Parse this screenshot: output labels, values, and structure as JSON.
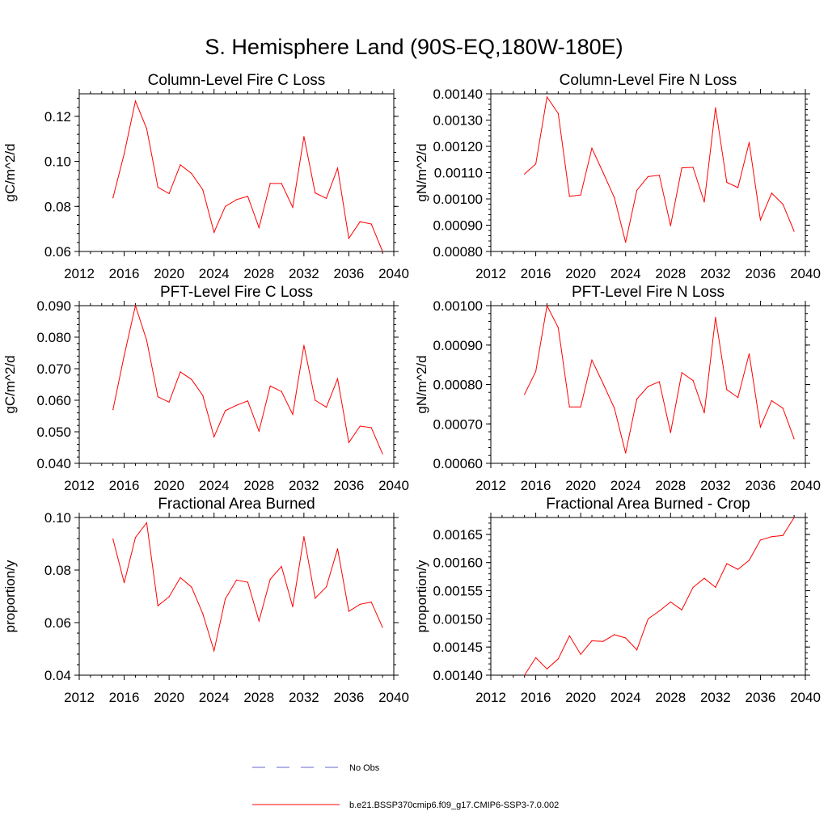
{
  "figure": {
    "title": "S. Hemisphere Land (90S-EQ,180W-180E)"
  },
  "legend": {
    "entries": [
      {
        "label": "No Obs",
        "color": "#6666cc",
        "dash": true
      },
      {
        "label": "b.e21.BSSP370cmip6.f09_g17.CMIP6-SSP3-7.0.002",
        "color": "#ff0000",
        "dash": false
      }
    ]
  },
  "chart_data": [
    {
      "type": "line",
      "title": "Column-Level Fire C Loss",
      "ylabel": "gC/m^2/d",
      "xlim": [
        2012,
        2040
      ],
      "ylim": [
        0.06,
        0.13
      ],
      "xticks": [
        2012,
        2016,
        2020,
        2024,
        2028,
        2032,
        2036,
        2040
      ],
      "xtick_labels": [
        "2012",
        "2016",
        "2020",
        "2024",
        "2028",
        "2032",
        "2036",
        "2040"
      ],
      "yticks": [
        0.06,
        0.08,
        0.1,
        0.12
      ],
      "ytick_labels": [
        "0.06",
        "0.08",
        "0.10",
        "0.12"
      ],
      "x": [
        2015,
        2016,
        2017,
        2018,
        2019,
        2020,
        2021,
        2022,
        2023,
        2024,
        2025,
        2026,
        2027,
        2028,
        2029,
        2030,
        2031,
        2032,
        2033,
        2034,
        2035,
        2036,
        2037,
        2038,
        2039
      ],
      "series": [
        {
          "color": "#ff0000",
          "values": [
            0.0838,
            0.1034,
            0.1268,
            0.1145,
            0.0885,
            0.0857,
            0.0985,
            0.0946,
            0.0874,
            0.0685,
            0.08,
            0.083,
            0.0845,
            0.0706,
            0.0902,
            0.0902,
            0.0796,
            0.111,
            0.086,
            0.0836,
            0.097,
            0.0658,
            0.0732,
            0.0722,
            0.06
          ]
        }
      ]
    },
    {
      "type": "line",
      "title": "Column-Level Fire N Loss",
      "ylabel": "gN/m^2/d",
      "xlim": [
        2012,
        2040
      ],
      "ylim": [
        0.0008,
        0.0014
      ],
      "xticks": [
        2012,
        2016,
        2020,
        2024,
        2028,
        2032,
        2036,
        2040
      ],
      "xtick_labels": [
        "2012",
        "2016",
        "2020",
        "2024",
        "2028",
        "2032",
        "2036",
        "2040"
      ],
      "yticks": [
        0.0008,
        0.0009,
        0.001,
        0.0011,
        0.0012,
        0.0013,
        0.0014
      ],
      "ytick_labels": [
        "0.00080",
        "0.00090",
        "0.00100",
        "0.00110",
        "0.00120",
        "0.00130",
        "0.00140"
      ],
      "x": [
        2015,
        2016,
        2017,
        2018,
        2019,
        2020,
        2021,
        2022,
        2023,
        2024,
        2025,
        2026,
        2027,
        2028,
        2029,
        2030,
        2031,
        2032,
        2033,
        2034,
        2035,
        2036,
        2037,
        2038,
        2039
      ],
      "series": [
        {
          "color": "#ff0000",
          "values": [
            0.001095,
            0.001133,
            0.001388,
            0.001325,
            0.00101,
            0.001015,
            0.001193,
            0.0011,
            0.001005,
            0.000835,
            0.001033,
            0.001085,
            0.00109,
            0.000898,
            0.001118,
            0.00112,
            0.000988,
            0.001347,
            0.001063,
            0.001043,
            0.001215,
            0.00092,
            0.001022,
            0.00098,
            0.000877
          ]
        }
      ]
    },
    {
      "type": "line",
      "title": "PFT-Level Fire C Loss",
      "ylabel": "gC/m^2/d",
      "xlim": [
        2012,
        2040
      ],
      "ylim": [
        0.04,
        0.09
      ],
      "xticks": [
        2012,
        2016,
        2020,
        2024,
        2028,
        2032,
        2036,
        2040
      ],
      "xtick_labels": [
        "2012",
        "2016",
        "2020",
        "2024",
        "2028",
        "2032",
        "2036",
        "2040"
      ],
      "yticks": [
        0.04,
        0.05,
        0.06,
        0.07,
        0.08,
        0.09
      ],
      "ytick_labels": [
        "0.040",
        "0.050",
        "0.060",
        "0.070",
        "0.080",
        "0.090"
      ],
      "x": [
        2015,
        2016,
        2017,
        2018,
        2019,
        2020,
        2021,
        2022,
        2023,
        2024,
        2025,
        2026,
        2027,
        2028,
        2029,
        2030,
        2031,
        2032,
        2033,
        2034,
        2035,
        2036,
        2037,
        2038,
        2039
      ],
      "series": [
        {
          "color": "#ff0000",
          "values": [
            0.057,
            0.0742,
            0.09,
            0.079,
            0.0611,
            0.0594,
            0.069,
            0.0666,
            0.0615,
            0.0484,
            0.0567,
            0.0584,
            0.0598,
            0.0502,
            0.0645,
            0.0628,
            0.0555,
            0.0774,
            0.06,
            0.0578,
            0.0668,
            0.0466,
            0.0518,
            0.0513,
            0.043
          ]
        }
      ]
    },
    {
      "type": "line",
      "title": "PFT-Level Fire N Loss",
      "ylabel": "gN/m^2/d",
      "xlim": [
        2012,
        2040
      ],
      "ylim": [
        0.0006,
        0.001
      ],
      "xticks": [
        2012,
        2016,
        2020,
        2024,
        2028,
        2032,
        2036,
        2040
      ],
      "xtick_labels": [
        "2012",
        "2016",
        "2020",
        "2024",
        "2028",
        "2032",
        "2036",
        "2040"
      ],
      "yticks": [
        0.0006,
        0.0007,
        0.0008,
        0.0009,
        0.001
      ],
      "ytick_labels": [
        "0.00060",
        "0.00070",
        "0.00080",
        "0.00090",
        "0.00100"
      ],
      "x": [
        2015,
        2016,
        2017,
        2018,
        2019,
        2020,
        2021,
        2022,
        2023,
        2024,
        2025,
        2026,
        2027,
        2028,
        2029,
        2030,
        2031,
        2032,
        2033,
        2034,
        2035,
        2036,
        2037,
        2038,
        2039
      ],
      "series": [
        {
          "color": "#ff0000",
          "values": [
            0.000775,
            0.000833,
            0.001,
            0.000944,
            0.000743,
            0.000743,
            0.000862,
            0.000802,
            0.00074,
            0.000626,
            0.000763,
            0.000795,
            0.000807,
            0.000678,
            0.00083,
            0.00081,
            0.000728,
            0.00097,
            0.000787,
            0.000767,
            0.000878,
            0.000692,
            0.000759,
            0.00074,
            0.000662
          ]
        }
      ]
    },
    {
      "type": "line",
      "title": "Fractional Area Burned",
      "ylabel": "proportion/y",
      "xlim": [
        2012,
        2040
      ],
      "ylim": [
        0.04,
        0.1
      ],
      "xticks": [
        2012,
        2016,
        2020,
        2024,
        2028,
        2032,
        2036,
        2040
      ],
      "xtick_labels": [
        "2012",
        "2016",
        "2020",
        "2024",
        "2028",
        "2032",
        "2036",
        "2040"
      ],
      "yticks": [
        0.04,
        0.06,
        0.08,
        0.1
      ],
      "ytick_labels": [
        "0.04",
        "0.06",
        "0.08",
        "0.10"
      ],
      "x": [
        2015,
        2016,
        2017,
        2018,
        2019,
        2020,
        2021,
        2022,
        2023,
        2024,
        2025,
        2026,
        2027,
        2028,
        2029,
        2030,
        2031,
        2032,
        2033,
        2034,
        2035,
        2036,
        2037,
        2038,
        2039
      ],
      "series": [
        {
          "color": "#ff0000",
          "values": [
            0.0918,
            0.0752,
            0.0924,
            0.098,
            0.0664,
            0.0698,
            0.0771,
            0.0735,
            0.0634,
            0.0493,
            0.069,
            0.0762,
            0.0754,
            0.0606,
            0.0765,
            0.0814,
            0.066,
            0.0927,
            0.0693,
            0.0736,
            0.0881,
            0.0643,
            0.067,
            0.0678,
            0.0582
          ]
        }
      ]
    },
    {
      "type": "line",
      "title": "Fractional Area Burned - Crop",
      "ylabel": "proportion/y",
      "xlim": [
        2012,
        2040
      ],
      "ylim": [
        0.0014,
        0.00168
      ],
      "xticks": [
        2012,
        2016,
        2020,
        2024,
        2028,
        2032,
        2036,
        2040
      ],
      "xtick_labels": [
        "2012",
        "2016",
        "2020",
        "2024",
        "2028",
        "2032",
        "2036",
        "2040"
      ],
      "yticks": [
        0.0014,
        0.00145,
        0.0015,
        0.00155,
        0.0016,
        0.00165
      ],
      "ytick_labels": [
        "0.00140",
        "0.00145",
        "0.00150",
        "0.00155",
        "0.00160",
        "0.00165"
      ],
      "x": [
        2015,
        2016,
        2017,
        2018,
        2019,
        2020,
        2021,
        2022,
        2023,
        2024,
        2025,
        2026,
        2027,
        2028,
        2029,
        2030,
        2031,
        2032,
        2033,
        2034,
        2035,
        2036,
        2037,
        2038,
        2039
      ],
      "series": [
        {
          "color": "#ff0000",
          "values": [
            0.0014,
            0.001431,
            0.001411,
            0.001429,
            0.00147,
            0.001437,
            0.001461,
            0.00146,
            0.001472,
            0.001466,
            0.001445,
            0.0015,
            0.001514,
            0.00153,
            0.001516,
            0.001556,
            0.001572,
            0.001556,
            0.001598,
            0.001588,
            0.001604,
            0.00164,
            0.001646,
            0.001648,
            0.00168
          ]
        }
      ]
    }
  ]
}
